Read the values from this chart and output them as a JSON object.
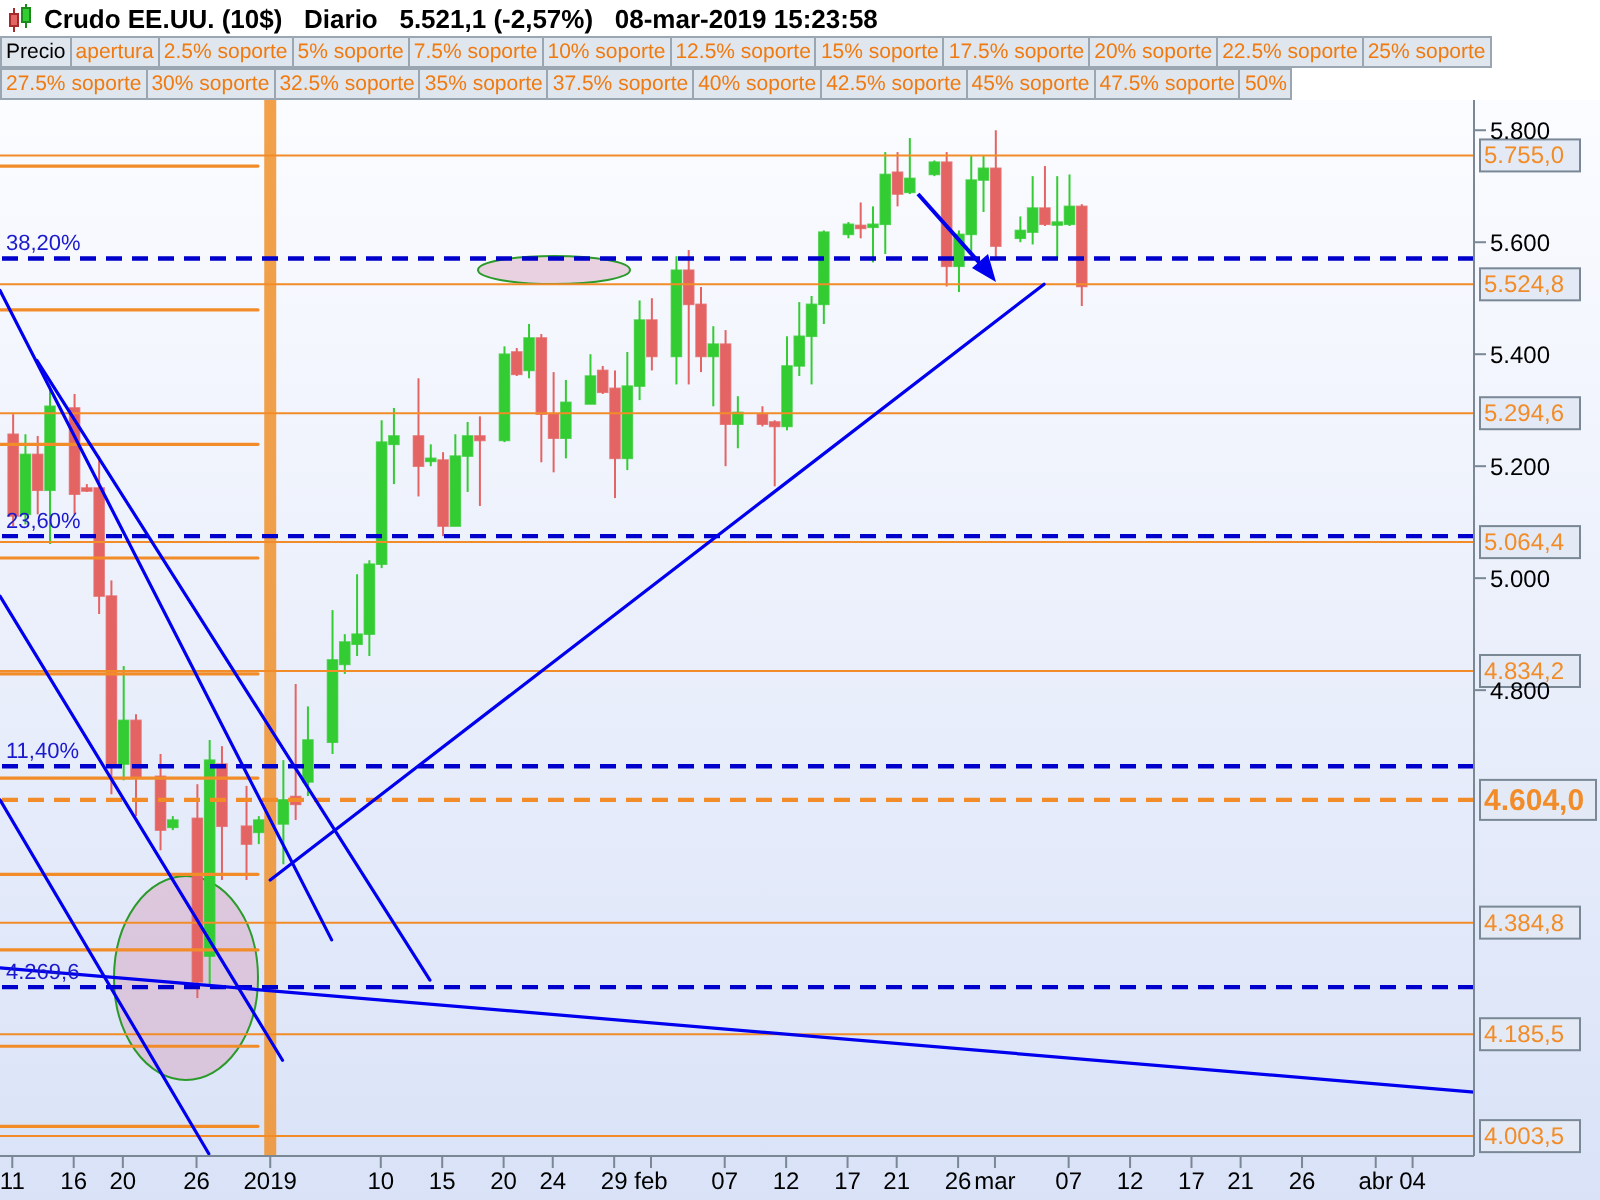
{
  "chart_data": {
    "type": "candlestick",
    "title": "Crudo EE.UU. (10$)",
    "subtitle": "Diario   5.521,1 (-2,57%)   08-mar-2019 15:23:58",
    "annotations": [
      "Precio",
      "apertura",
      "2.5% soporte",
      "5% soporte",
      "7.5% soporte",
      "10% soporte",
      "12.5% soporte",
      "15% soporte",
      "17.5% soporte",
      "20% soporte",
      "22.5% soporte",
      "25% soporte",
      "27.5% soporte",
      "30% soporte",
      "32.5% soporte",
      "35% soporte",
      "37.5% soporte",
      "40% soporte",
      "42.5% soporte",
      "45% soporte",
      "47.5% soporte",
      "50%",
      {
        "text": "38,20%",
        "x": "2018-12-10",
        "y": 5571
      },
      {
        "text": "23,60%",
        "x": "2018-12-10",
        "y": 5075
      },
      {
        "text": "11,40%",
        "x": "2018-12-10",
        "y": 4664
      },
      {
        "text": "4.269,6",
        "x": "2018-12-10",
        "y": 4269.6
      }
    ],
    "x": [
      "2018-12-11",
      "2018-12-12",
      "2018-12-13",
      "2018-12-14",
      "2018-12-16",
      "2018-12-17",
      "2018-12-18",
      "2018-12-19",
      "2018-12-20",
      "2018-12-21",
      "2018-12-23",
      "2018-12-24",
      "2018-12-26",
      "2018-12-27",
      "2018-12-28",
      "2018-12-30",
      "2018-12-31",
      "2019-01-02",
      "2019-01-03",
      "2019-01-04",
      "2019-01-06",
      "2019-01-07",
      "2019-01-08",
      "2019-01-09",
      "2019-01-10",
      "2019-01-11",
      "2019-01-13",
      "2019-01-14",
      "2019-01-15",
      "2019-01-16",
      "2019-01-17",
      "2019-01-18",
      "2019-01-20",
      "2019-01-21",
      "2019-01-22",
      "2019-01-23",
      "2019-01-24",
      "2019-01-25",
      "2019-01-27",
      "2019-01-28",
      "2019-01-29",
      "2019-01-30",
      "2019-01-31",
      "2019-02-01",
      "2019-02-03",
      "2019-02-04",
      "2019-02-05",
      "2019-02-06",
      "2019-02-07",
      "2019-02-08",
      "2019-02-10",
      "2019-02-11",
      "2019-02-12",
      "2019-02-13",
      "2019-02-14",
      "2019-02-15",
      "2019-02-17",
      "2019-02-18",
      "2019-02-19",
      "2019-02-20",
      "2019-02-21",
      "2019-02-22",
      "2019-02-24",
      "2019-02-25",
      "2019-02-26",
      "2019-02-27",
      "2019-02-28",
      "2019-03-01",
      "2019-03-03",
      "2019-03-04",
      "2019-03-05",
      "2019-03-06",
      "2019-03-07",
      "2019-03-08"
    ],
    "ohlc": [
      [
        5257,
        5293,
        5093,
        5111
      ],
      [
        5114,
        5257,
        5096,
        5221
      ],
      [
        5221,
        5254,
        5114,
        5157
      ],
      [
        5157,
        5343,
        5061,
        5307
      ],
      [
        5304,
        5329,
        5114,
        5150
      ],
      [
        5161,
        5168,
        5154,
        5157
      ],
      [
        5161,
        5218,
        4936,
        4968
      ],
      [
        4968,
        4996,
        4614,
        4664
      ],
      [
        4668,
        4843,
        4639,
        4746
      ],
      [
        4746,
        4757,
        4575,
        4643
      ],
      [
        4646,
        4686,
        4514,
        4550
      ],
      [
        4555,
        4575,
        4550,
        4568
      ],
      [
        4571,
        4632,
        4250,
        4279
      ],
      [
        4325,
        4711,
        4275,
        4675
      ],
      [
        4668,
        4700,
        4461,
        4557
      ],
      [
        4557,
        4629,
        4461,
        4525
      ],
      [
        4546,
        4575,
        4525,
        4568
      ],
      [
        4561,
        4675,
        4489,
        4604
      ],
      [
        4610,
        4811,
        4568,
        4596
      ],
      [
        4636,
        4771,
        4611,
        4711
      ],
      [
        4707,
        4943,
        4686,
        4854
      ],
      [
        4846,
        4900,
        4829,
        4886
      ],
      [
        4882,
        5007,
        4861,
        4900
      ],
      [
        4900,
        5032,
        4861,
        5025
      ],
      [
        5025,
        5282,
        5018,
        5243
      ],
      [
        5239,
        5304,
        5168,
        5254
      ],
      [
        5254,
        5357,
        5146,
        5200
      ],
      [
        5211,
        5239,
        5200,
        5214
      ],
      [
        5211,
        5225,
        5075,
        5093
      ],
      [
        5093,
        5257,
        5093,
        5218
      ],
      [
        5218,
        5279,
        5154,
        5254
      ],
      [
        5254,
        5289,
        5129,
        5246
      ],
      [
        5246,
        5414,
        5243,
        5400
      ],
      [
        5404,
        5411,
        5361,
        5364
      ],
      [
        5371,
        5454,
        5357,
        5429
      ],
      [
        5429,
        5436,
        5207,
        5293
      ],
      [
        5293,
        5368,
        5189,
        5250
      ],
      [
        5250,
        5354,
        5214,
        5314
      ],
      [
        5311,
        5400,
        5311,
        5361
      ],
      [
        5371,
        5379,
        5329,
        5332
      ],
      [
        5339,
        5371,
        5143,
        5214
      ],
      [
        5214,
        5404,
        5193,
        5343
      ],
      [
        5343,
        5496,
        5318,
        5461
      ],
      [
        5461,
        5500,
        5371,
        5396
      ],
      [
        5396,
        5575,
        5346,
        5550
      ],
      [
        5550,
        5586,
        5346,
        5489
      ],
      [
        5489,
        5520,
        5368,
        5396
      ],
      [
        5396,
        5450,
        5307,
        5418
      ],
      [
        5418,
        5443,
        5200,
        5275
      ],
      [
        5275,
        5325,
        5232,
        5296
      ],
      [
        5293,
        5307,
        5271,
        5275
      ],
      [
        5279,
        5282,
        5164,
        5271
      ],
      [
        5271,
        5432,
        5264,
        5379
      ],
      [
        5379,
        5493,
        5361,
        5432
      ],
      [
        5432,
        5504,
        5346,
        5489
      ],
      [
        5489,
        5621,
        5454,
        5618
      ],
      [
        5614,
        5636,
        5607,
        5632
      ],
      [
        5630,
        5671,
        5607,
        5625
      ],
      [
        5628,
        5664,
        5564,
        5632
      ],
      [
        5632,
        5761,
        5579,
        5721
      ],
      [
        5725,
        5761,
        5664,
        5686
      ],
      [
        5689,
        5786,
        5686,
        5714
      ],
      [
        5721,
        5746,
        5718,
        5743
      ],
      [
        5743,
        5761,
        5521,
        5557
      ],
      [
        5557,
        5621,
        5511,
        5614
      ],
      [
        5614,
        5754,
        5582,
        5711
      ],
      [
        5711,
        5754,
        5654,
        5732
      ],
      [
        5732,
        5800,
        5568,
        5593
      ],
      [
        5607,
        5646,
        5600,
        5621
      ],
      [
        5618,
        5718,
        5596,
        5661
      ],
      [
        5661,
        5736,
        5629,
        5632
      ],
      [
        5634,
        5718,
        5571,
        5636
      ],
      [
        5632,
        5721,
        5629,
        5664
      ],
      [
        5664,
        5668,
        5486,
        5521
      ]
    ],
    "colors": [
      "#e46464",
      "#33cc33",
      "#e46464",
      "#33cc33",
      "#e46464",
      "#e46464",
      "#e46464",
      "#e46464",
      "#33cc33",
      "#e46464",
      "#e46464",
      "#33cc33",
      "#e46464",
      "#33cc33",
      "#e46464",
      "#e46464",
      "#33cc33",
      "#33cc33",
      "#e46464",
      "#33cc33",
      "#33cc33",
      "#33cc33",
      "#33cc33",
      "#33cc33",
      "#33cc33",
      "#33cc33",
      "#e46464",
      "#33cc33",
      "#e46464",
      "#33cc33",
      "#33cc33",
      "#e46464",
      "#33cc33",
      "#e46464",
      "#33cc33",
      "#e46464",
      "#e46464",
      "#33cc33",
      "#33cc33",
      "#e46464",
      "#e46464",
      "#33cc33",
      "#33cc33",
      "#e46464",
      "#33cc33",
      "#e46464",
      "#e46464",
      "#33cc33",
      "#e46464",
      "#33cc33",
      "#e46464",
      "#e46464",
      "#33cc33",
      "#33cc33",
      "#33cc33",
      "#33cc33",
      "#33cc33",
      "#e46464",
      "#33cc33",
      "#33cc33",
      "#e46464",
      "#33cc33",
      "#33cc33",
      "#e46464",
      "#33cc33",
      "#33cc33",
      "#33cc33",
      "#e46464",
      "#33cc33",
      "#33cc33",
      "#e46464",
      "#33cc33",
      "#33cc33",
      "#e46464"
    ],
    "series": [
      {
        "type": "line",
        "color": "#f28c28",
        "x": [
          "2018-12-10",
          "2018-12-31"
        ],
        "values": [
          5736,
          5736
        ]
      },
      {
        "type": "line",
        "color": "#f28c28",
        "x": [
          "2018-12-10",
          "2018-12-31"
        ],
        "values": [
          5479,
          5479
        ]
      },
      {
        "type": "line",
        "color": "#f28c28",
        "x": [
          "2018-12-10",
          "2018-12-31"
        ],
        "values": [
          5239,
          5239
        ]
      },
      {
        "type": "line",
        "color": "#f28c28",
        "x": [
          "2018-12-10",
          "2018-12-31"
        ],
        "values": [
          5036,
          5036
        ]
      },
      {
        "type": "line",
        "color": "#f28c28",
        "x": [
          "2018-12-10",
          "2018-12-31"
        ],
        "values": [
          4829,
          4829
        ]
      },
      {
        "type": "line",
        "color": "#f28c28",
        "x": [
          "2018-12-10",
          "2018-12-31"
        ],
        "values": [
          4643,
          4643
        ]
      },
      {
        "type": "line",
        "color": "#f28c28",
        "x": [
          "2018-12-10",
          "2018-12-31"
        ],
        "values": [
          4471,
          4471
        ]
      },
      {
        "type": "line",
        "color": "#f28c28",
        "x": [
          "2018-12-10",
          "2018-12-31"
        ],
        "values": [
          4336,
          4336
        ]
      },
      {
        "type": "line",
        "color": "#f28c28",
        "x": [
          "2018-12-10",
          "2018-12-31"
        ],
        "values": [
          4164,
          4164
        ]
      },
      {
        "type": "line",
        "color": "#f28c28",
        "x": [
          "2018-12-10",
          "2018-12-31"
        ],
        "values": [
          4021,
          4021
        ]
      },
      {
        "type": "line",
        "color": "#0000ee",
        "x": [
          "2018-12-10",
          "2019-01-06"
        ],
        "values": [
          5514,
          4354
        ]
      },
      {
        "type": "line",
        "color": "#0000ee",
        "x": [
          "2018-12-13",
          "2019-01-14"
        ],
        "values": [
          5389,
          4282
        ]
      },
      {
        "type": "line",
        "color": "#0000ee",
        "x": [
          "2018-12-10",
          "2019-01-02"
        ],
        "values": [
          4968,
          4139
        ]
      },
      {
        "type": "line",
        "color": "#0000ee",
        "x": [
          "2018-12-10",
          "2018-12-27"
        ],
        "values": [
          4604,
          3972
        ]
      },
      {
        "type": "line",
        "color": "#0000ee",
        "x": [
          "2018-12-10",
          "2019-04-09"
        ],
        "values": [
          4304,
          4082
        ]
      },
      {
        "type": "line",
        "color": "#0000ee",
        "x": [
          "2019-01-01",
          "2019-03-05"
        ],
        "values": [
          4461,
          5525
        ]
      }
    ],
    "xlim": [
      "2018-12-10",
      "2019-04-09"
    ],
    "xticks": [
      {
        "value": "2018-12-11",
        "label": "11"
      },
      {
        "value": "2018-12-16",
        "label": "16"
      },
      {
        "value": "2018-12-20",
        "label": "20"
      },
      {
        "value": "2018-12-26",
        "label": "26"
      },
      {
        "value": "2019-01-01",
        "label": "2019"
      },
      {
        "value": "2019-01-10",
        "label": "10"
      },
      {
        "value": "2019-01-15",
        "label": "15"
      },
      {
        "value": "2019-01-20",
        "label": "20"
      },
      {
        "value": "2019-01-24",
        "label": "24"
      },
      {
        "value": "2019-01-29",
        "label": "29"
      },
      {
        "value": "2019-02-01",
        "label": "feb"
      },
      {
        "value": "2019-02-07",
        "label": "07"
      },
      {
        "value": "2019-02-12",
        "label": "12"
      },
      {
        "value": "2019-02-17",
        "label": "17"
      },
      {
        "value": "2019-02-21",
        "label": "21"
      },
      {
        "value": "2019-02-26",
        "label": "26"
      },
      {
        "value": "2019-03-01",
        "label": "mar"
      },
      {
        "value": "2019-03-07",
        "label": "07"
      },
      {
        "value": "2019-03-12",
        "label": "12"
      },
      {
        "value": "2019-03-17",
        "label": "17"
      },
      {
        "value": "2019-03-21",
        "label": "21"
      },
      {
        "value": "2019-03-26",
        "label": "26"
      },
      {
        "value": "2019-04-01",
        "label": "abr"
      },
      {
        "value": "2019-04-04",
        "label": "04"
      }
    ],
    "ylim": [
      3968,
      5854
    ],
    "yticks": [
      {
        "value": 4800,
        "label": "4.800"
      },
      {
        "value": 5000,
        "label": "5.000"
      },
      {
        "value": 5200,
        "label": "5.200"
      },
      {
        "value": 5400,
        "label": "5.400"
      },
      {
        "value": 5600,
        "label": "5.600"
      },
      {
        "value": 5800,
        "label": "5.800"
      }
    ],
    "ref_lines": [
      {
        "axis": "x",
        "value": "2019-01-01",
        "color": "#f0902a"
      },
      {
        "axis": "y",
        "value": 5755,
        "label": "5.755,0",
        "color": "#f28c28"
      },
      {
        "axis": "y",
        "value": 5524.8,
        "label": "5.524,8",
        "color": "#f28c28"
      },
      {
        "axis": "y",
        "value": 5294.6,
        "label": "5.294,6",
        "color": "#f28c28"
      },
      {
        "axis": "y",
        "value": 5064.4,
        "label": "5.064,4",
        "color": "#f28c28"
      },
      {
        "axis": "y",
        "value": 4834.2,
        "label": "4.834,2",
        "color": "#f28c28"
      },
      {
        "axis": "y",
        "value": 4604,
        "label": "4.604,0",
        "color": "#f28c28",
        "line_style": "dashed"
      },
      {
        "axis": "y",
        "value": 4384.8,
        "label": "4.384,8",
        "color": "#f28c28"
      },
      {
        "axis": "y",
        "value": 4185.5,
        "label": "4.185,5",
        "color": "#f28c28"
      },
      {
        "axis": "y",
        "value": 4003.5,
        "label": "4.003,5",
        "color": "#f28c28"
      },
      {
        "axis": "y",
        "value": 5571,
        "color": "#0000cc",
        "line_style": "dashed"
      },
      {
        "axis": "y",
        "value": 5075,
        "color": "#0000cc",
        "line_style": "dashed"
      },
      {
        "axis": "y",
        "value": 4664,
        "color": "#0000cc",
        "line_style": "dashed"
      },
      {
        "axis": "y",
        "value": 4269.6,
        "color": "#0000cc",
        "line_style": "dashed"
      }
    ]
  }
}
